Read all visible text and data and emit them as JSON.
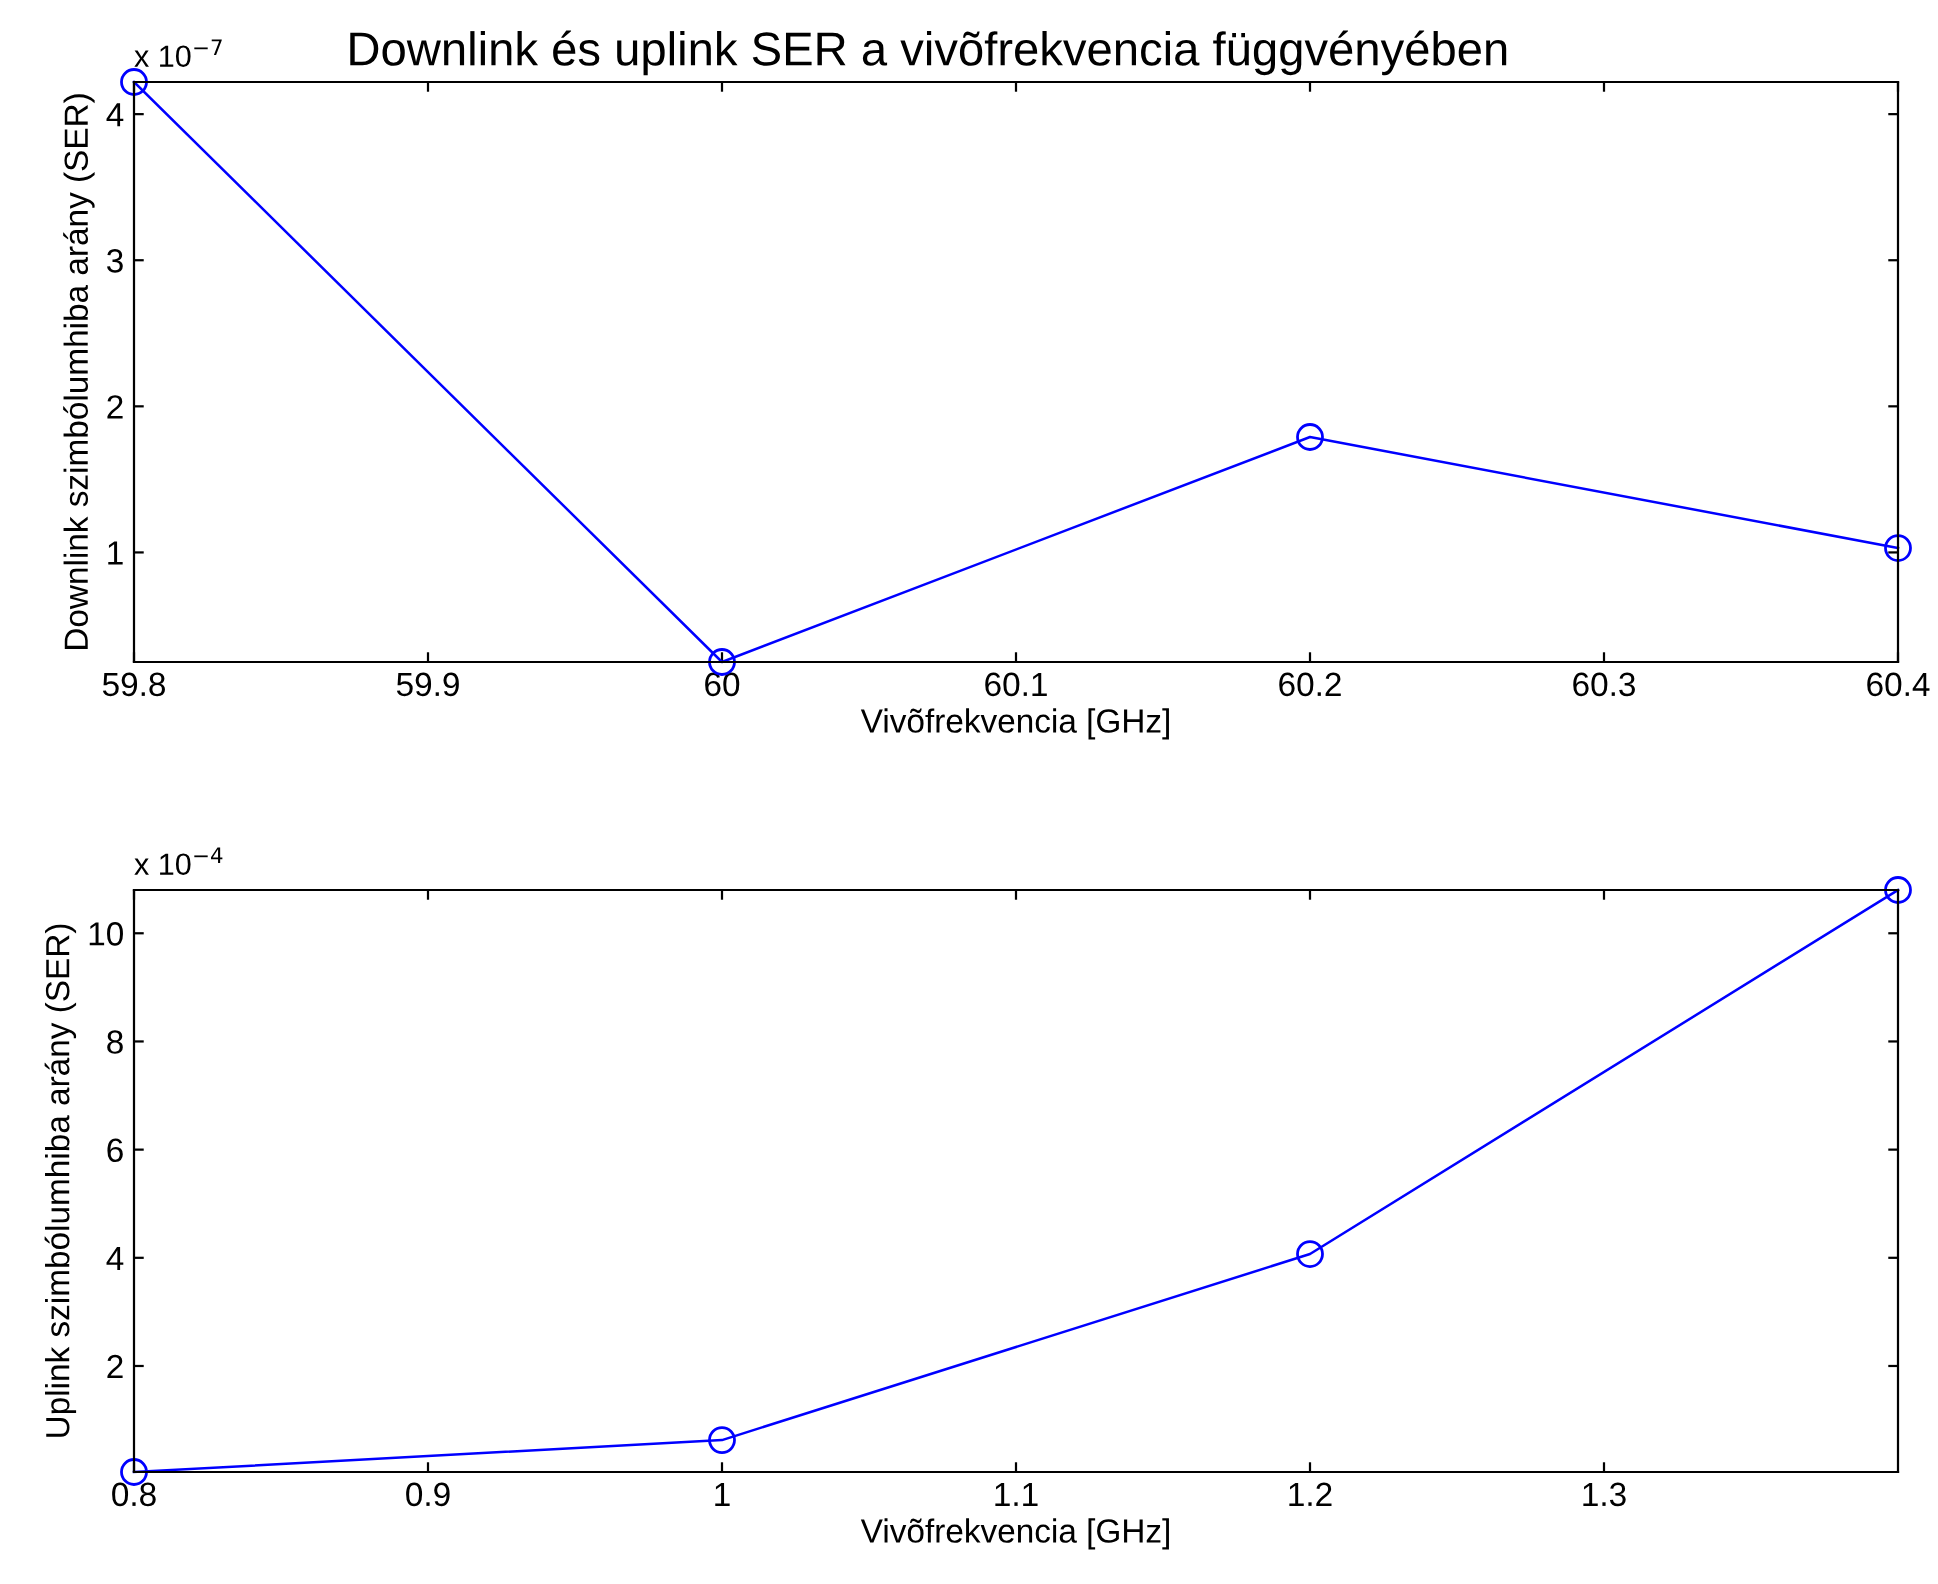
{
  "chart_data": [
    {
      "type": "line",
      "title": "Downlink és uplink SER a vivõfrekvencia függvényében",
      "xlabel": "Vivõfrekvencia [GHz]",
      "ylabel": "Downlink szimbólumhiba arány (SER)",
      "annotations": [
        "x 10$^{−7}$"
      ],
      "x": [
        59.8,
        60,
        60.2,
        60.4
      ],
      "series": [
        {
          "color": "#0000ff",
          "values": [
            4.22,
            0.25,
            1.79,
            1.03
          ]
        }
      ],
      "xlim": [
        59.8,
        60.4
      ],
      "xticks": [
        59.8,
        59.9,
        60,
        60.1,
        60.2,
        60.3,
        60.4
      ],
      "ylim": [
        0.25,
        4.22
      ],
      "yticks": [
        1,
        2,
        3,
        4
      ],
      "marker": "circle",
      "line_style": "solid",
      "grid": false,
      "legend": false
    },
    {
      "type": "line",
      "xlabel": "Vivõfrekvencia [GHz]",
      "ylabel": "Uplink szimbólumhiba arány (SER)",
      "annotations": [
        "x 10$^{−4}$"
      ],
      "x": [
        0.8,
        1.0,
        1.2,
        1.4
      ],
      "series": [
        {
          "color": "#0000ff",
          "values": [
            0.04,
            0.63,
            4.07,
            10.8
          ]
        }
      ],
      "xlim": [
        0.8,
        1.4
      ],
      "xticks": [
        0.8,
        0.9,
        1,
        1.1,
        1.2,
        1.3
      ],
      "ylim": [
        0.04,
        10.8
      ],
      "yticks": [
        2,
        4,
        6,
        8,
        10
      ],
      "marker": "circle",
      "line_style": "solid",
      "grid": false,
      "legend": false
    }
  ]
}
